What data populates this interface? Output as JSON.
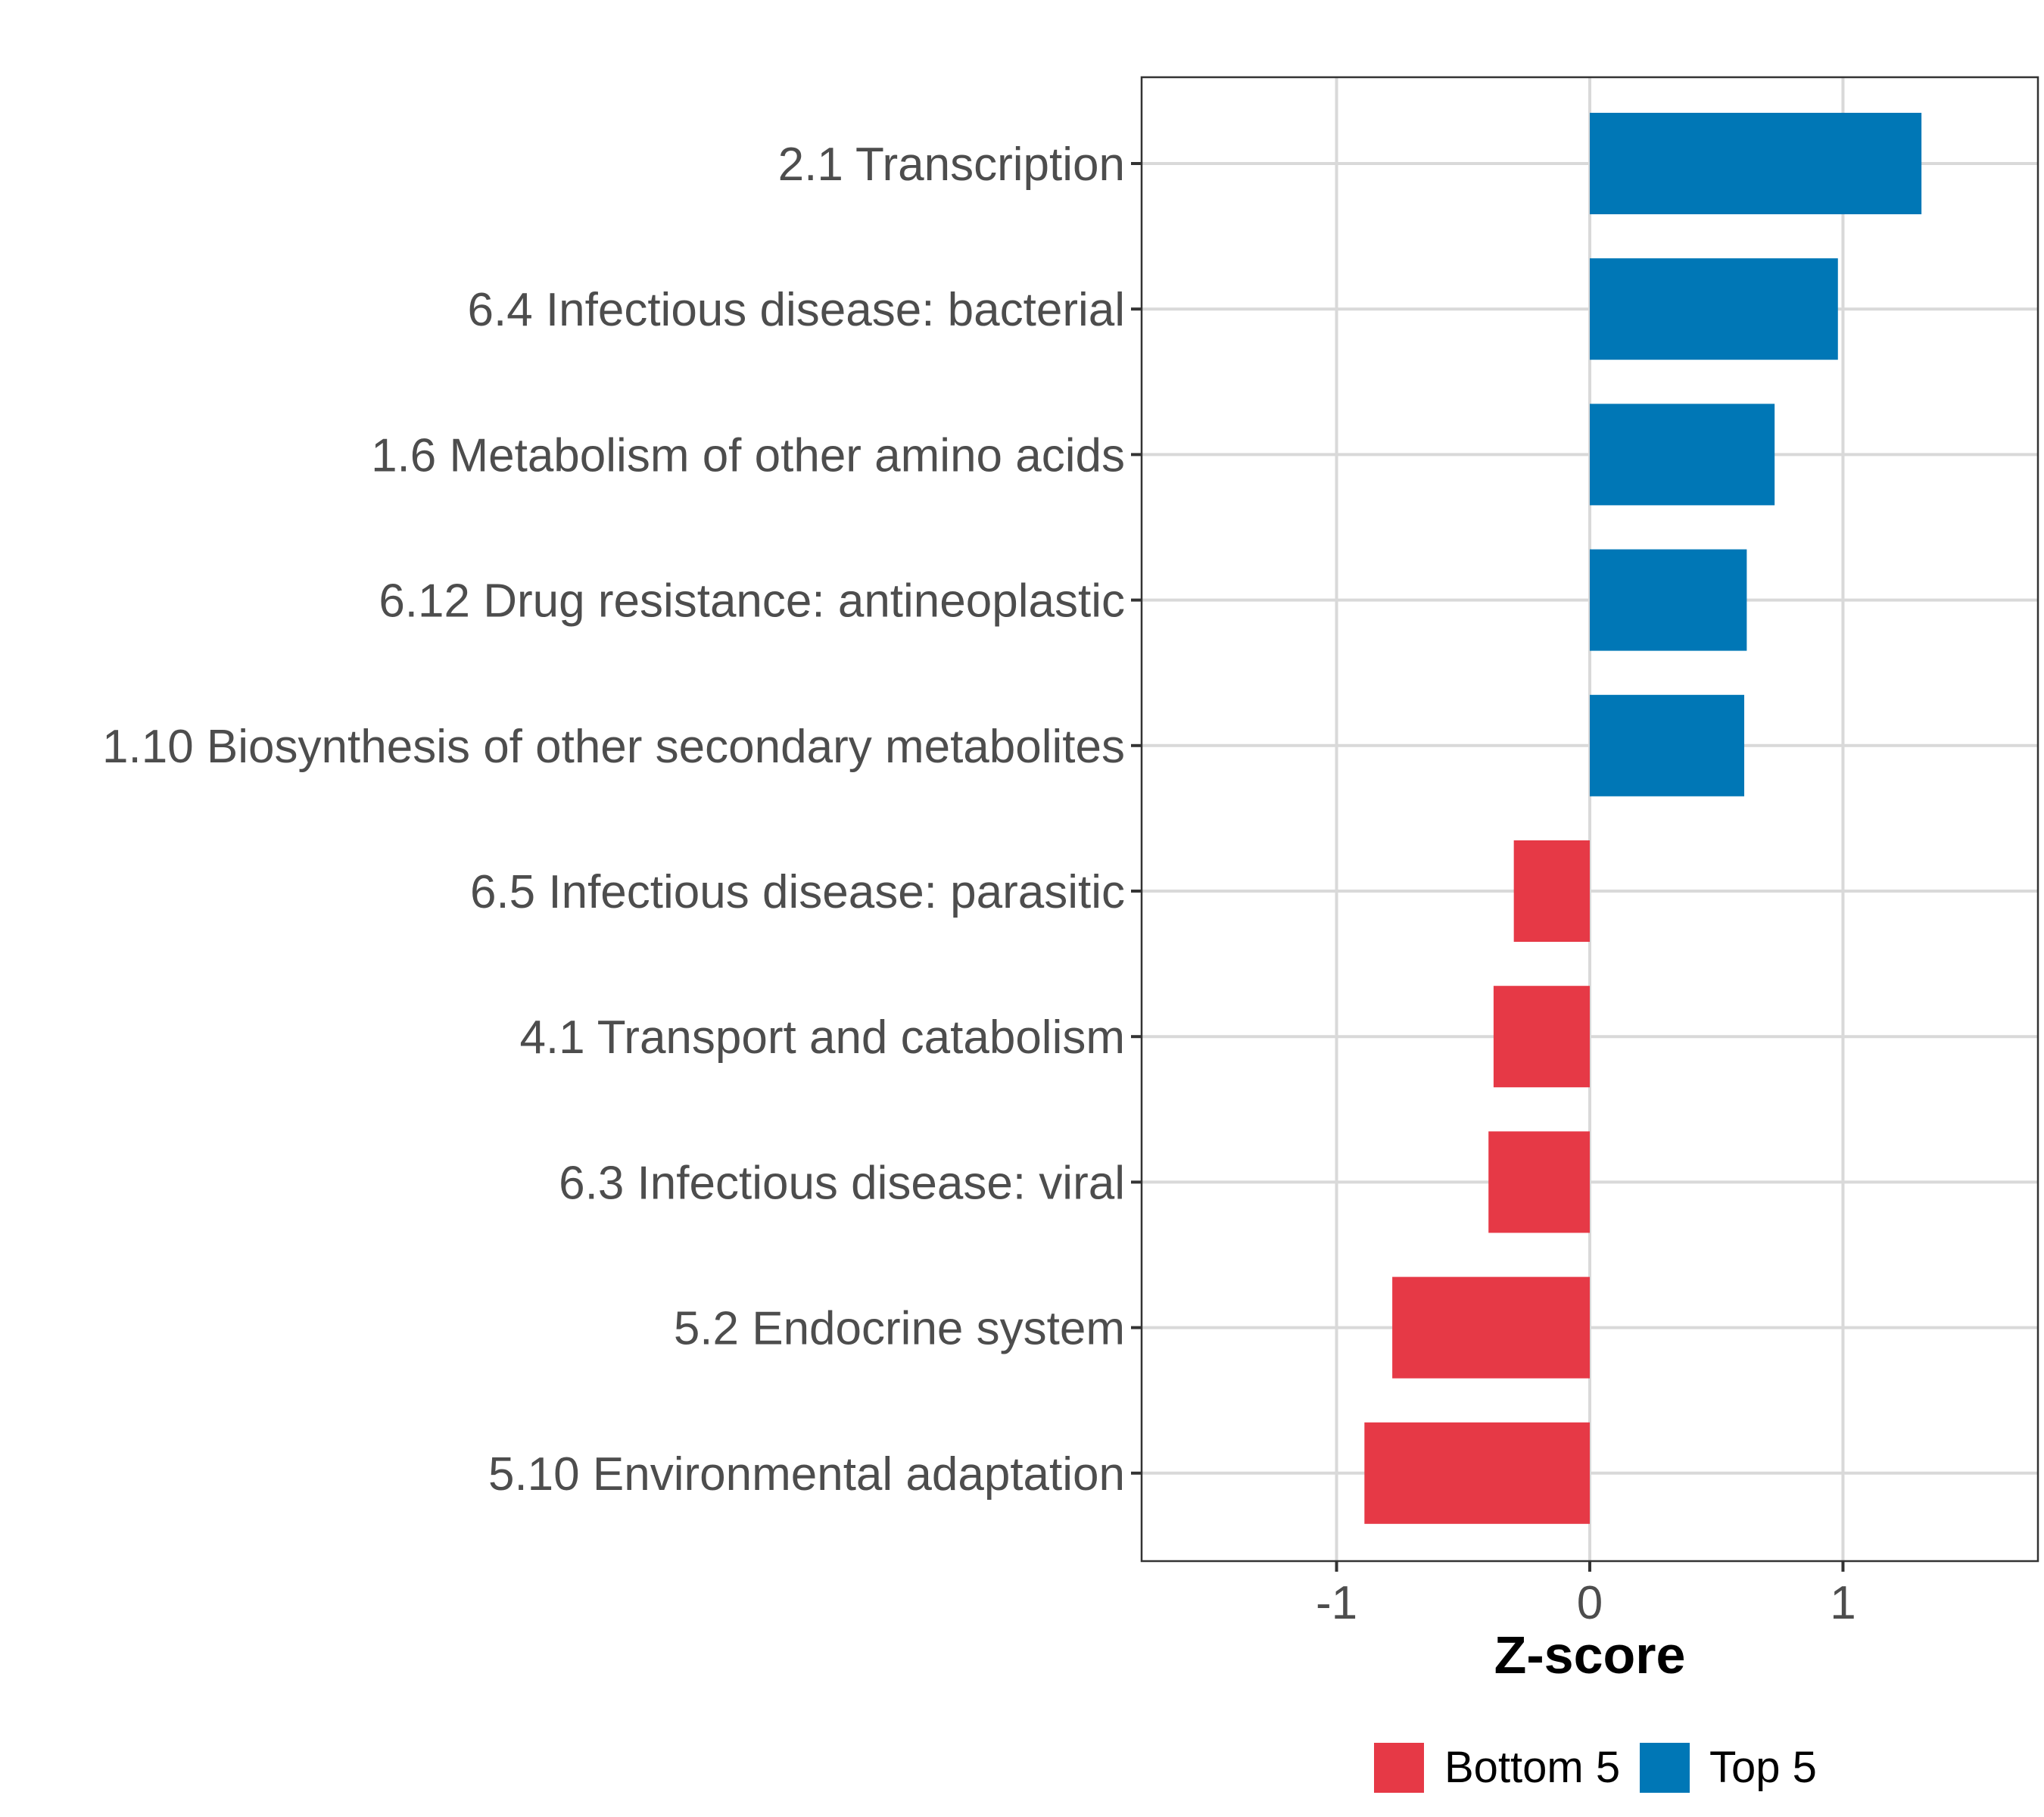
{
  "chart_data": {
    "type": "bar",
    "orientation": "horizontal",
    "title": "",
    "xlabel": "Z-score",
    "ylabel": "",
    "xlim": [
      -1.77,
      1.77
    ],
    "xticks": [
      -1,
      0,
      1
    ],
    "xtick_labels": [
      "-1",
      "0",
      "1"
    ],
    "grid": true,
    "legend": {
      "position": "bottom",
      "entries": [
        {
          "name": "Bottom 5",
          "color": "#e63946"
        },
        {
          "name": "Top 5",
          "color": "#0077b6"
        }
      ]
    },
    "categories": [
      "2.1 Transcription",
      "6.4 Infectious disease: bacterial",
      "1.6 Metabolism of other amino acids",
      "6.12 Drug resistance: antineoplastic",
      "1.10 Biosynthesis of other secondary metabolites",
      "6.5 Infectious disease: parasitic",
      "4.1 Transport and catabolism",
      "6.3 Infectious disease: viral",
      "5.2 Endocrine system",
      "5.10 Environmental adaptation"
    ],
    "values": [
      1.31,
      0.98,
      0.73,
      0.62,
      0.61,
      -0.3,
      -0.38,
      -0.4,
      -0.78,
      -0.89
    ],
    "groups": [
      "Top 5",
      "Top 5",
      "Top 5",
      "Top 5",
      "Top 5",
      "Bottom 5",
      "Bottom 5",
      "Bottom 5",
      "Bottom 5",
      "Bottom 5"
    ]
  }
}
